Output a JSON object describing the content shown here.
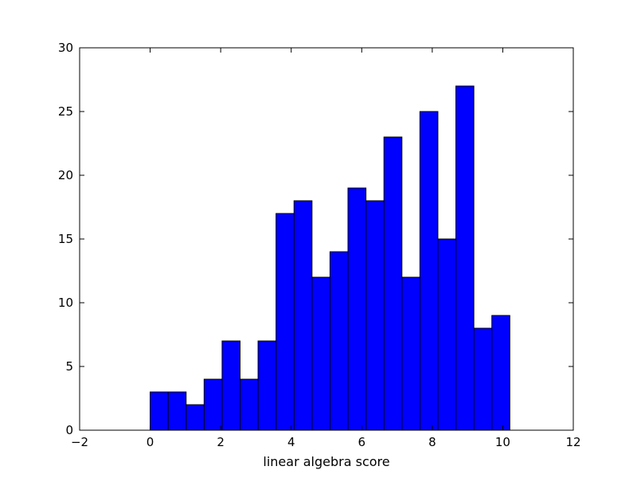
{
  "chart_data": {
    "type": "bar",
    "title": "",
    "xlabel": "linear algebra score",
    "ylabel": "",
    "xlim": [
      -2,
      12
    ],
    "ylim": [
      0,
      30
    ],
    "xticks": [
      -2,
      0,
      2,
      4,
      6,
      8,
      10,
      12
    ],
    "yticks": [
      0,
      5,
      10,
      15,
      20,
      25,
      30
    ],
    "grid": false,
    "legend": "none",
    "bar_color": "#0000ff",
    "edge_color": "#000000",
    "bins": [
      {
        "x0": 0.0,
        "x1": 0.51,
        "value": 3
      },
      {
        "x0": 0.51,
        "x1": 1.02,
        "value": 3
      },
      {
        "x0": 1.02,
        "x1": 1.53,
        "value": 2
      },
      {
        "x0": 1.53,
        "x1": 2.04,
        "value": 4
      },
      {
        "x0": 2.04,
        "x1": 2.55,
        "value": 7
      },
      {
        "x0": 2.55,
        "x1": 3.06,
        "value": 4
      },
      {
        "x0": 3.06,
        "x1": 3.57,
        "value": 7
      },
      {
        "x0": 3.57,
        "x1": 4.08,
        "value": 17
      },
      {
        "x0": 4.08,
        "x1": 4.59,
        "value": 18
      },
      {
        "x0": 4.59,
        "x1": 5.1,
        "value": 12
      },
      {
        "x0": 5.1,
        "x1": 5.61,
        "value": 14
      },
      {
        "x0": 5.61,
        "x1": 6.12,
        "value": 19
      },
      {
        "x0": 6.12,
        "x1": 6.63,
        "value": 18
      },
      {
        "x0": 6.63,
        "x1": 7.14,
        "value": 23
      },
      {
        "x0": 7.14,
        "x1": 7.65,
        "value": 12
      },
      {
        "x0": 7.65,
        "x1": 8.16,
        "value": 25
      },
      {
        "x0": 8.16,
        "x1": 8.67,
        "value": 15
      },
      {
        "x0": 8.67,
        "x1": 9.18,
        "value": 27
      },
      {
        "x0": 9.18,
        "x1": 9.69,
        "value": 8
      },
      {
        "x0": 9.69,
        "x1": 10.2,
        "value": 9
      }
    ]
  }
}
